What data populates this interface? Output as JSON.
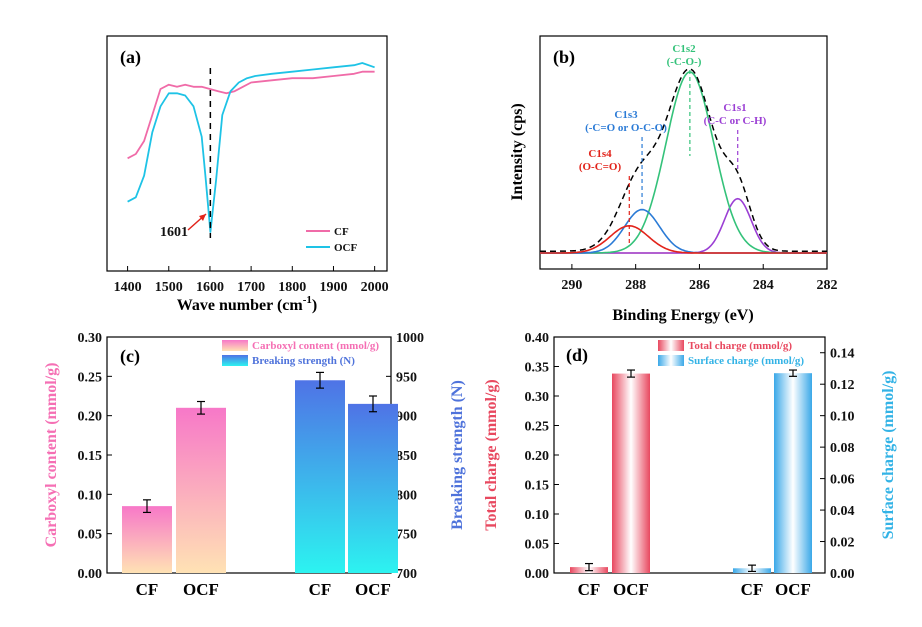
{
  "chart_data": [
    {
      "panel": "(a)",
      "type": "line",
      "xlabel": "Wave number (cm",
      "xlabel_sup": "-1",
      "xlabel_close": ")",
      "xlim": [
        1350,
        2030
      ],
      "xticks": [
        "1400",
        "1500",
        "1600",
        "1700",
        "1800",
        "1900",
        "2000"
      ],
      "xtick_values": [
        1400,
        1500,
        1600,
        1700,
        1800,
        1900,
        2000
      ],
      "annotation": "1601",
      "annotation_x": 1601,
      "colors": {
        "CF": "#f06ba8",
        "OCF": "#1ec3e6"
      },
      "series": [
        {
          "name": "CF",
          "x": [
            1400,
            1420,
            1440,
            1460,
            1480,
            1500,
            1520,
            1540,
            1560,
            1580,
            1600,
            1620,
            1640,
            1660,
            1680,
            1700,
            1750,
            1800,
            1850,
            1900,
            1950,
            1970,
            2000
          ],
          "y": [
            0.6,
            0.62,
            0.68,
            0.8,
            0.92,
            0.94,
            0.93,
            0.94,
            0.93,
            0.93,
            0.92,
            0.91,
            0.9,
            0.91,
            0.93,
            0.95,
            0.96,
            0.97,
            0.97,
            0.98,
            0.99,
            1.0,
            1.0
          ]
        },
        {
          "name": "OCF",
          "x": [
            1400,
            1420,
            1440,
            1460,
            1480,
            1500,
            1520,
            1540,
            1560,
            1580,
            1590,
            1601,
            1615,
            1630,
            1650,
            1670,
            1690,
            1710,
            1750,
            1800,
            1850,
            1900,
            1950,
            1970,
            2000
          ],
          "y": [
            0.4,
            0.42,
            0.52,
            0.72,
            0.84,
            0.9,
            0.9,
            0.89,
            0.84,
            0.7,
            0.5,
            0.26,
            0.5,
            0.8,
            0.91,
            0.95,
            0.97,
            0.98,
            0.99,
            1.0,
            1.01,
            1.02,
            1.03,
            1.04,
            1.02
          ]
        }
      ]
    },
    {
      "panel": "(b)",
      "type": "line",
      "xlabel": "Binding Energy (eV)",
      "ylabel": "Intensity (cps)",
      "xlim": [
        291,
        282
      ],
      "xticks": [
        "290",
        "288",
        "286",
        "284",
        "282"
      ],
      "xtick_values": [
        290,
        288,
        286,
        284,
        282
      ],
      "peaks": [
        {
          "name": "C1s1",
          "label": "(C-C or C-H)",
          "center": 284.8,
          "height": 0.3,
          "width": 0.42,
          "color": "#9b3fd4"
        },
        {
          "name": "C1s2",
          "label": "(-C-O-)",
          "center": 286.3,
          "height": 1.0,
          "width": 0.75,
          "color": "#34c27a"
        },
        {
          "name": "C1s3",
          "label": "(-C=O or O-C-O)",
          "center": 287.8,
          "height": 0.24,
          "width": 0.55,
          "color": "#2b7bd6"
        },
        {
          "name": "C1s4",
          "label": "(O-C=O)",
          "center": 288.2,
          "height": 0.15,
          "width": 0.6,
          "color": "#e2231a"
        }
      ],
      "envelope": {
        "style": "dashed",
        "color": "#000000"
      },
      "baseline_color": "#e2231a"
    },
    {
      "panel": "(c)",
      "type": "bar",
      "categories": [
        "CF",
        "OCF"
      ],
      "ylabel": "Carboxyl content (mmol/g)",
      "ylabel_color": "#f56fb4",
      "ylim": [
        0,
        0.3
      ],
      "yticks": [
        "0.00",
        "0.05",
        "0.10",
        "0.15",
        "0.20",
        "0.25",
        "0.30"
      ],
      "ytick_values": [
        0,
        0.05,
        0.1,
        0.15,
        0.2,
        0.25,
        0.3
      ],
      "y2label": "Breaking strength (N)",
      "y2label_color": "#4f73db",
      "y2lim": [
        700,
        1000
      ],
      "y2ticks": [
        "700",
        "750",
        "800",
        "850",
        "900",
        "950",
        "1000"
      ],
      "y2tick_values": [
        700,
        750,
        800,
        850,
        900,
        950,
        1000
      ],
      "legend_placement": "top",
      "series": [
        {
          "name": "Carboxyl content (mmol/g)",
          "axis": "left",
          "values": [
            0.085,
            0.21
          ],
          "errors": [
            0.008,
            0.008
          ],
          "color": "#f778c8",
          "color2": "#ffe0b0"
        },
        {
          "name": "Breaking strength (N)",
          "axis": "right",
          "values": [
            945,
            915
          ],
          "errors": [
            10,
            10
          ],
          "color": "#4f73e6",
          "color2": "#2cf0f0"
        }
      ]
    },
    {
      "panel": "(d)",
      "type": "bar",
      "categories": [
        "CF",
        "OCF"
      ],
      "ylabel": "Total charge (mmol/g)",
      "ylabel_color": "#e8485f",
      "ylim": [
        0,
        0.4
      ],
      "yticks": [
        "0.00",
        "0.05",
        "0.10",
        "0.15",
        "0.20",
        "0.25",
        "0.30",
        "0.35",
        "0.40"
      ],
      "ytick_values": [
        0,
        0.05,
        0.1,
        0.15,
        0.2,
        0.25,
        0.3,
        0.35,
        0.4
      ],
      "y2label": "Surface charge (mmol/g)",
      "y2label_color": "#33b3e6",
      "y2lim": [
        0,
        0.15
      ],
      "y2ticks": [
        "0.00",
        "0.02",
        "0.04",
        "0.06",
        "0.08",
        "0.10",
        "0.12",
        "0.14"
      ],
      "y2tick_values": [
        0,
        0.02,
        0.04,
        0.06,
        0.08,
        0.1,
        0.12,
        0.14
      ],
      "legend_placement": "top-right",
      "series": [
        {
          "name": "Total charge (mmol/g)",
          "axis": "left",
          "values": [
            0.01,
            0.338
          ],
          "errors": [
            0.006,
            0.006
          ],
          "color": "#e8485f",
          "color2": "#ffffff"
        },
        {
          "name": "Surface charge (mmol/g)",
          "axis": "right",
          "values": [
            0.003,
            0.127
          ],
          "errors": [
            0.002,
            0.002
          ],
          "color": "#3aa8e8",
          "color2": "#ffffff"
        }
      ]
    }
  ]
}
